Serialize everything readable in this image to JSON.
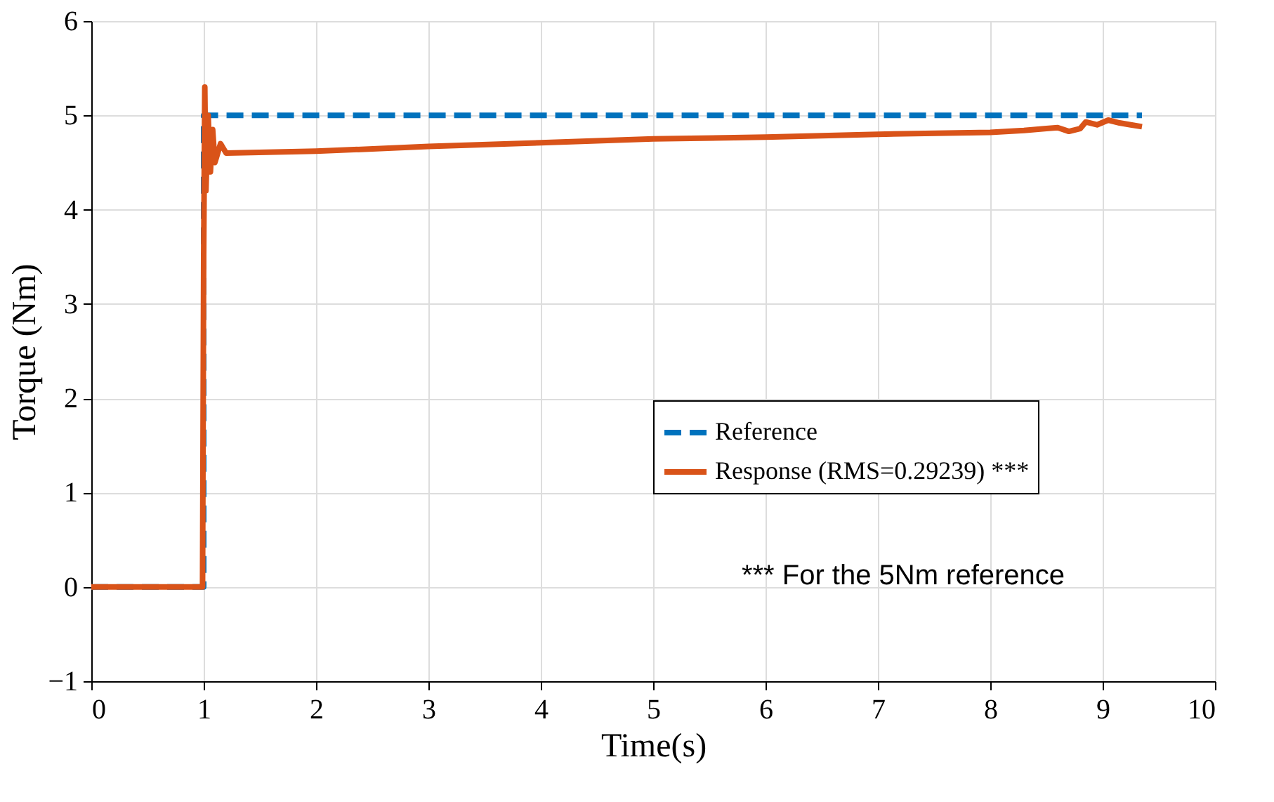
{
  "chart_data": {
    "type": "line",
    "xlabel": "Time(s)",
    "ylabel": "Torque (Nm)",
    "xlim": [
      0,
      10
    ],
    "xticks": [
      0,
      1,
      2,
      3,
      4,
      5,
      6,
      7,
      8,
      9,
      10
    ],
    "ylim": [
      -1,
      6
    ],
    "yticks": [
      -1,
      0,
      1,
      2,
      3,
      4,
      5,
      6
    ],
    "grid": true,
    "legend": "bottom right",
    "annotations": [
      "*** For the 5Nm reference"
    ],
    "series": [
      {
        "name": "Reference",
        "color": "#0072bd",
        "line_style": "dashed",
        "x": [
          0,
          1,
          1,
          9.35
        ],
        "values": [
          0,
          0,
          5,
          5
        ]
      },
      {
        "name": "Response (RMS=0.29239) ***",
        "color": "#d95319",
        "line_style": "solid",
        "x": [
          0,
          0.5,
          0.99,
          1.0,
          1.01,
          1.02,
          1.04,
          1.06,
          1.08,
          1.1,
          1.15,
          1.2,
          2,
          3,
          4,
          5,
          6,
          7,
          8,
          8.3,
          8.5,
          8.6,
          8.7,
          8.8,
          8.85,
          8.95,
          9.05,
          9.15,
          9.25,
          9.35
        ],
        "values": [
          0,
          0,
          0,
          3.5,
          5.3,
          4.2,
          5.0,
          4.4,
          4.85,
          4.5,
          4.7,
          4.6,
          4.62,
          4.67,
          4.71,
          4.75,
          4.77,
          4.8,
          4.82,
          4.84,
          4.86,
          4.87,
          4.83,
          4.86,
          4.93,
          4.9,
          4.95,
          4.92,
          4.9,
          4.88
        ]
      }
    ]
  }
}
